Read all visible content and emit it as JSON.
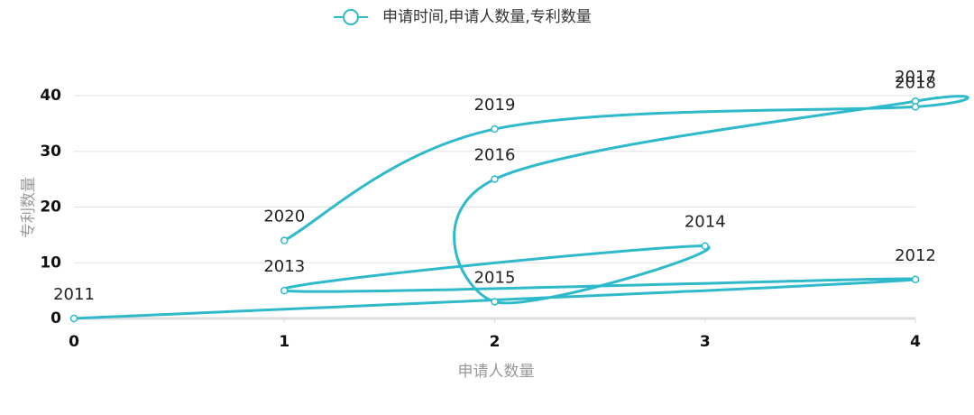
{
  "chart_data": {
    "type": "line",
    "x_label": "申请人数量",
    "y_label": "专利数量",
    "x": [
      0,
      4,
      1,
      3,
      2,
      2,
      4,
      4,
      2,
      1
    ],
    "series": [
      {
        "name": "申请时间,申请人数量,专利数量",
        "color": "#2fbacb",
        "values": [
          0,
          7,
          5,
          13,
          3,
          25,
          39,
          38,
          34,
          14
        ],
        "point_labels": [
          "2011",
          "2012",
          "2013",
          "2014",
          "2015",
          "2016",
          "2017",
          "2018",
          "2019",
          "2020"
        ]
      }
    ],
    "xlim": [
      0,
      4
    ],
    "xticks": [
      0,
      1,
      2,
      3,
      4
    ],
    "ylim": [
      0,
      40
    ],
    "yticks": [
      0,
      10,
      20,
      30,
      40
    ],
    "grid": true,
    "smooth": true,
    "legend": "top"
  }
}
